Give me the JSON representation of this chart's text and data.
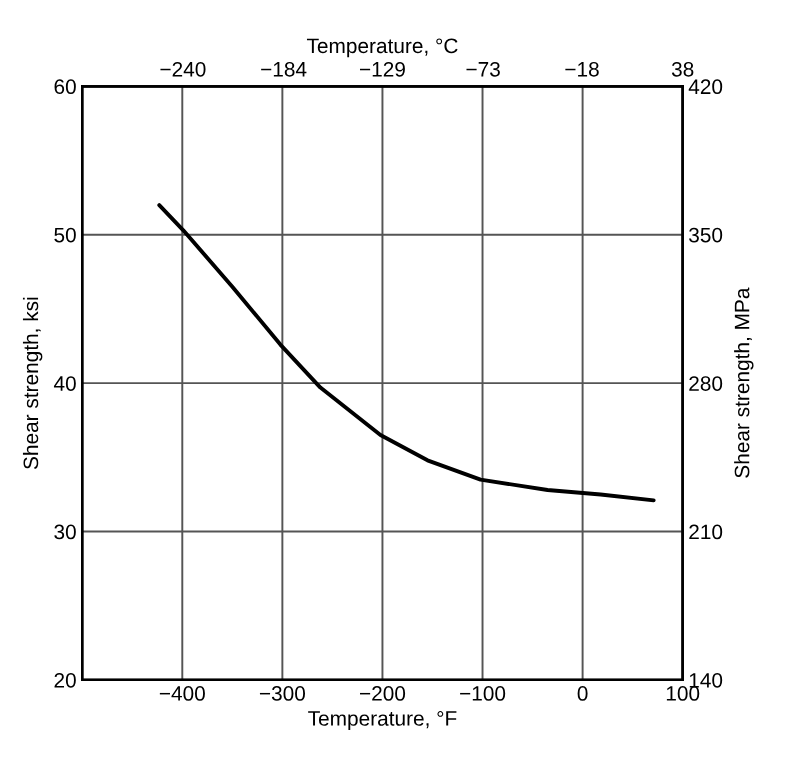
{
  "chart_data": {
    "type": "line",
    "xlabel": "Temperature, °F",
    "ylabel": "Shear strength, ksi",
    "y2label": "Shear strength, MPa",
    "x2label": "Temperature, °C",
    "x": [
      -423,
      -399,
      -350,
      -302,
      -262,
      -202,
      -155,
      -102,
      -35,
      18,
      71
    ],
    "series": [
      {
        "color": "#000000",
        "values": [
          52.0,
          50.3,
          46.5,
          42.6,
          39.7,
          36.5,
          34.8,
          33.5,
          32.8,
          32.5,
          32.1
        ]
      }
    ],
    "xlim": [
      -500,
      100
    ],
    "xticks": [
      -400,
      -300,
      -200,
      -100,
      0,
      100
    ],
    "ylim": [
      20,
      60
    ],
    "yticks": [
      20,
      30,
      40,
      50,
      60
    ],
    "y2lim": [
      140,
      420
    ],
    "y2ticks": [
      140,
      210,
      280,
      350,
      420
    ],
    "x2lim": [
      -296,
      38
    ],
    "x2ticks": [
      -240,
      -184,
      -129,
      -73,
      -18,
      38
    ],
    "grid": true,
    "marker": "none",
    "line_style": "solid"
  }
}
